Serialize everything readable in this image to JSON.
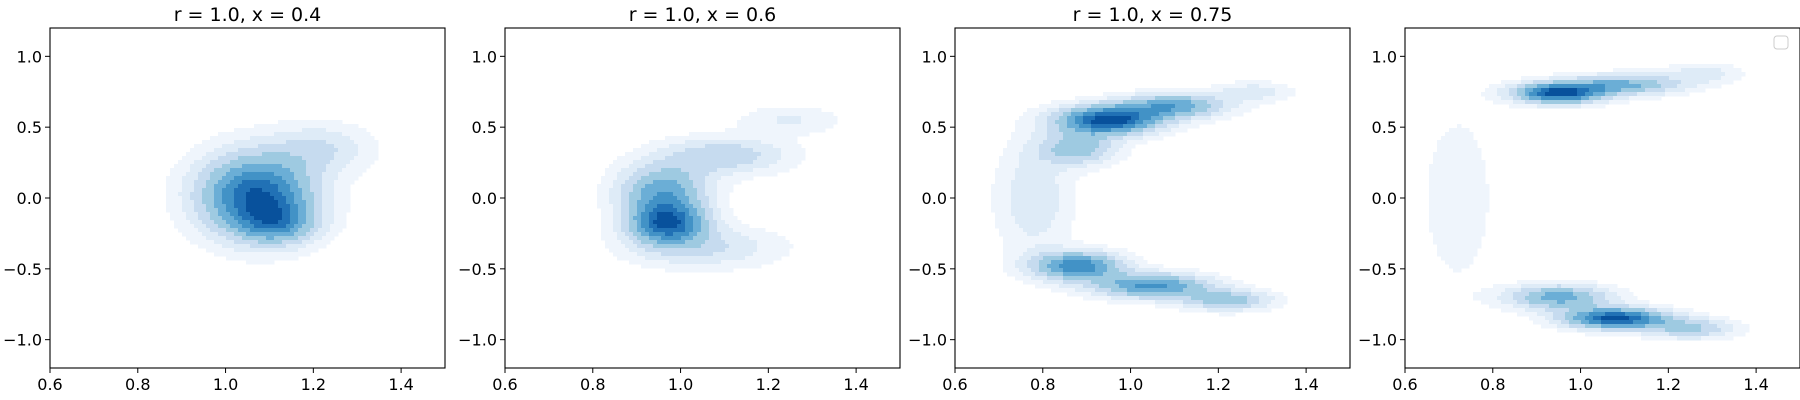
{
  "chart_data": [
    {
      "type": "contour",
      "title": "r = 1.0, x = 0.4",
      "xlim": [
        0.6,
        1.5
      ],
      "ylim": [
        -1.2,
        1.2
      ],
      "xticks": [
        0.6,
        0.8,
        1.0,
        1.2,
        1.4
      ],
      "xtick_labels": [
        "0.6",
        "0.8",
        "1.0",
        "1.2",
        "1.4"
      ],
      "yticks": [
        -1.0,
        -0.5,
        0.0,
        0.5,
        1.0
      ],
      "ytick_labels": [
        "−1.0",
        "−0.5",
        "0.0",
        "0.5",
        "1.0"
      ],
      "colormap": "Blues",
      "density_components": [
        {
          "cx": 1.07,
          "cy": 0.02,
          "sx": 0.09,
          "sy": 0.2,
          "weight": 1.0
        },
        {
          "cx": 1.12,
          "cy": -0.18,
          "sx": 0.06,
          "sy": 0.1,
          "weight": 0.45
        },
        {
          "cx": 1.22,
          "cy": 0.35,
          "sx": 0.08,
          "sy": 0.12,
          "weight": 0.25
        }
      ],
      "legend": false
    },
    {
      "type": "contour",
      "title": "r = 1.0, x = 0.6",
      "xlim": [
        0.6,
        1.5
      ],
      "ylim": [
        -1.2,
        1.2
      ],
      "xticks": [
        0.6,
        0.8,
        1.0,
        1.2,
        1.4
      ],
      "xtick_labels": [
        "0.6",
        "0.8",
        "1.0",
        "1.2",
        "1.4"
      ],
      "yticks": [
        -1.0,
        -0.5,
        0.0,
        0.5,
        1.0
      ],
      "ytick_labels": [
        "−1.0",
        "−0.5",
        "0.0",
        "0.5",
        "1.0"
      ],
      "colormap": "Blues",
      "density_components": [
        {
          "cx": 0.97,
          "cy": -0.18,
          "sx": 0.06,
          "sy": 0.1,
          "weight": 1.0
        },
        {
          "cx": 0.96,
          "cy": 0.05,
          "sx": 0.07,
          "sy": 0.13,
          "weight": 0.7
        },
        {
          "cx": 1.1,
          "cy": 0.3,
          "sx": 0.1,
          "sy": 0.09,
          "weight": 0.4
        },
        {
          "cx": 1.05,
          "cy": -0.35,
          "sx": 0.12,
          "sy": 0.1,
          "weight": 0.3
        },
        {
          "cx": 1.25,
          "cy": 0.55,
          "sx": 0.08,
          "sy": 0.07,
          "weight": 0.18
        }
      ],
      "legend": false
    },
    {
      "type": "contour",
      "title": "r = 1.0, x = 0.75",
      "xlim": [
        0.6,
        1.5
      ],
      "ylim": [
        -1.2,
        1.2
      ],
      "xticks": [
        0.6,
        0.8,
        1.0,
        1.2,
        1.4
      ],
      "xtick_labels": [
        "0.6",
        "0.8",
        "1.0",
        "1.2",
        "1.4"
      ],
      "yticks": [
        -1.0,
        -0.5,
        0.0,
        0.5,
        1.0
      ],
      "ytick_labels": [
        "−1.0",
        "−0.5",
        "0.0",
        "0.5",
        "1.0"
      ],
      "colormap": "Blues",
      "density_components": [
        {
          "cx": 0.95,
          "cy": 0.55,
          "sx": 0.08,
          "sy": 0.07,
          "weight": 1.0
        },
        {
          "cx": 1.1,
          "cy": 0.65,
          "sx": 0.08,
          "sy": 0.06,
          "weight": 0.6
        },
        {
          "cx": 0.88,
          "cy": 0.35,
          "sx": 0.06,
          "sy": 0.08,
          "weight": 0.45
        },
        {
          "cx": 0.88,
          "cy": -0.48,
          "sx": 0.07,
          "sy": 0.07,
          "weight": 0.75
        },
        {
          "cx": 1.05,
          "cy": -0.62,
          "sx": 0.09,
          "sy": 0.06,
          "weight": 0.7
        },
        {
          "cx": 1.22,
          "cy": -0.72,
          "sx": 0.07,
          "sy": 0.05,
          "weight": 0.45
        },
        {
          "cx": 0.78,
          "cy": 0.0,
          "sx": 0.06,
          "sy": 0.28,
          "weight": 0.22
        },
        {
          "cx": 1.28,
          "cy": 0.75,
          "sx": 0.06,
          "sy": 0.05,
          "weight": 0.2
        }
      ],
      "legend": false
    },
    {
      "type": "contour",
      "title": "",
      "xlim": [
        0.6,
        1.5
      ],
      "ylim": [
        -1.2,
        1.2
      ],
      "xticks": [
        0.6,
        0.8,
        1.0,
        1.2,
        1.4
      ],
      "xtick_labels": [
        "0.6",
        "0.8",
        "1.0",
        "1.2",
        "1.4"
      ],
      "yticks": [
        -1.0,
        -0.5,
        0.0,
        0.5,
        1.0
      ],
      "ytick_labels": [
        "−1.0",
        "−0.5",
        "0.0",
        "0.5",
        "1.0"
      ],
      "colormap": "Blues",
      "density_components": [
        {
          "cx": 0.95,
          "cy": 0.74,
          "sx": 0.07,
          "sy": 0.05,
          "weight": 1.0
        },
        {
          "cx": 1.1,
          "cy": 0.8,
          "sx": 0.09,
          "sy": 0.05,
          "weight": 0.55
        },
        {
          "cx": 1.08,
          "cy": -0.85,
          "sx": 0.08,
          "sy": 0.05,
          "weight": 1.0
        },
        {
          "cx": 0.95,
          "cy": -0.7,
          "sx": 0.08,
          "sy": 0.06,
          "weight": 0.6
        },
        {
          "cx": 1.25,
          "cy": -0.92,
          "sx": 0.07,
          "sy": 0.05,
          "weight": 0.4
        },
        {
          "cx": 0.72,
          "cy": 0.0,
          "sx": 0.06,
          "sy": 0.45,
          "weight": 0.12
        },
        {
          "cx": 1.28,
          "cy": 0.88,
          "sx": 0.06,
          "sy": 0.05,
          "weight": 0.2
        }
      ],
      "legend": true,
      "legend_loc": "upper right"
    }
  ]
}
